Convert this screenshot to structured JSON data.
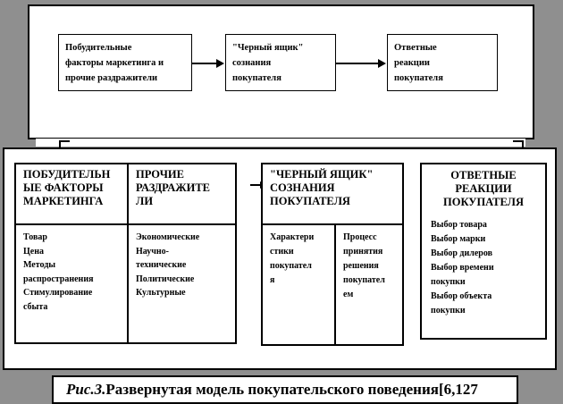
{
  "figure": {
    "top_flow": {
      "boxes": [
        {
          "label": "Побудительные\nфакторы маркетинга и\nпрочие раздражители"
        },
        {
          "label": "\"Черный ящик\"\nсознания\nпокупателя"
        },
        {
          "label": "Ответные\nреакции\nпокупателя"
        }
      ]
    },
    "detail": {
      "stimuli_table": {
        "col1": {
          "header": "ПОБУДИТЕЛЬН\nЫЕ ФАКТОРЫ\nМАРКЕТИНГА",
          "items": [
            "Товар",
            "Цена",
            "Методы распространения",
            "Стимулирование сбыта"
          ]
        },
        "col2": {
          "header": "ПРОЧИЕ\nРАЗДРАЖИТЕ\nЛИ",
          "items": [
            "Экономические",
            "Научно-технические",
            "Политические",
            "Культурные"
          ]
        }
      },
      "blackbox_table": {
        "header": "\"ЧЕРНЫЙ ЯЩИК\"\nСОЗНАНИЯ\nПОКУПАТЕЛЯ",
        "cells": [
          "Характери\nстики\nпокупател\nя",
          "Процесс\nпринятия\nрешения\nпокупател\nем"
        ]
      },
      "responses_table": {
        "header": "ОТВЕТНЫЕ\nРЕАКЦИИ\nПОКУПАТЕЛЯ",
        "items": [
          "Выбор товара",
          "Выбор марки",
          "Выбор дилеров",
          "Выбор времени покупки",
          "Выбор объекта покупки"
        ]
      }
    },
    "caption": {
      "prefix": "Рис.3.",
      "text": "Развернутая модель покупательского поведения[6,127"
    }
  },
  "colors": {
    "background": "#8f8f8f",
    "panel": "#ffffff",
    "line": "#000000"
  }
}
